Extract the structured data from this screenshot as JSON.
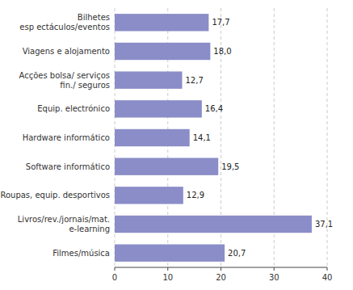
{
  "chart_data": {
    "type": "bar",
    "orientation": "horizontal",
    "categories": [
      "Bilhetes\nesp ectáculos/eventos",
      "Viagens e alojamento",
      "Acções bolsa/ serviços\nfin./ seguros",
      "Equip. electrónico",
      "Hardware informático",
      "Software informático",
      "Roupas, equip. desportivos",
      "Livros/rev./jornais/mat.\ne-learning",
      "Filmes/música"
    ],
    "values": [
      17.7,
      18.0,
      12.7,
      16.4,
      14.1,
      19.5,
      12.9,
      37.1,
      20.7
    ],
    "value_labels": [
      "17,7",
      "18,0",
      "12,7",
      "16,4",
      "14,1",
      "19,5",
      "12,9",
      "37,1",
      "20,7"
    ],
    "color": "#8b8dc8",
    "xlim": [
      0,
      40
    ],
    "xticks": [
      0,
      10,
      20,
      30,
      40
    ],
    "grid": true
  }
}
